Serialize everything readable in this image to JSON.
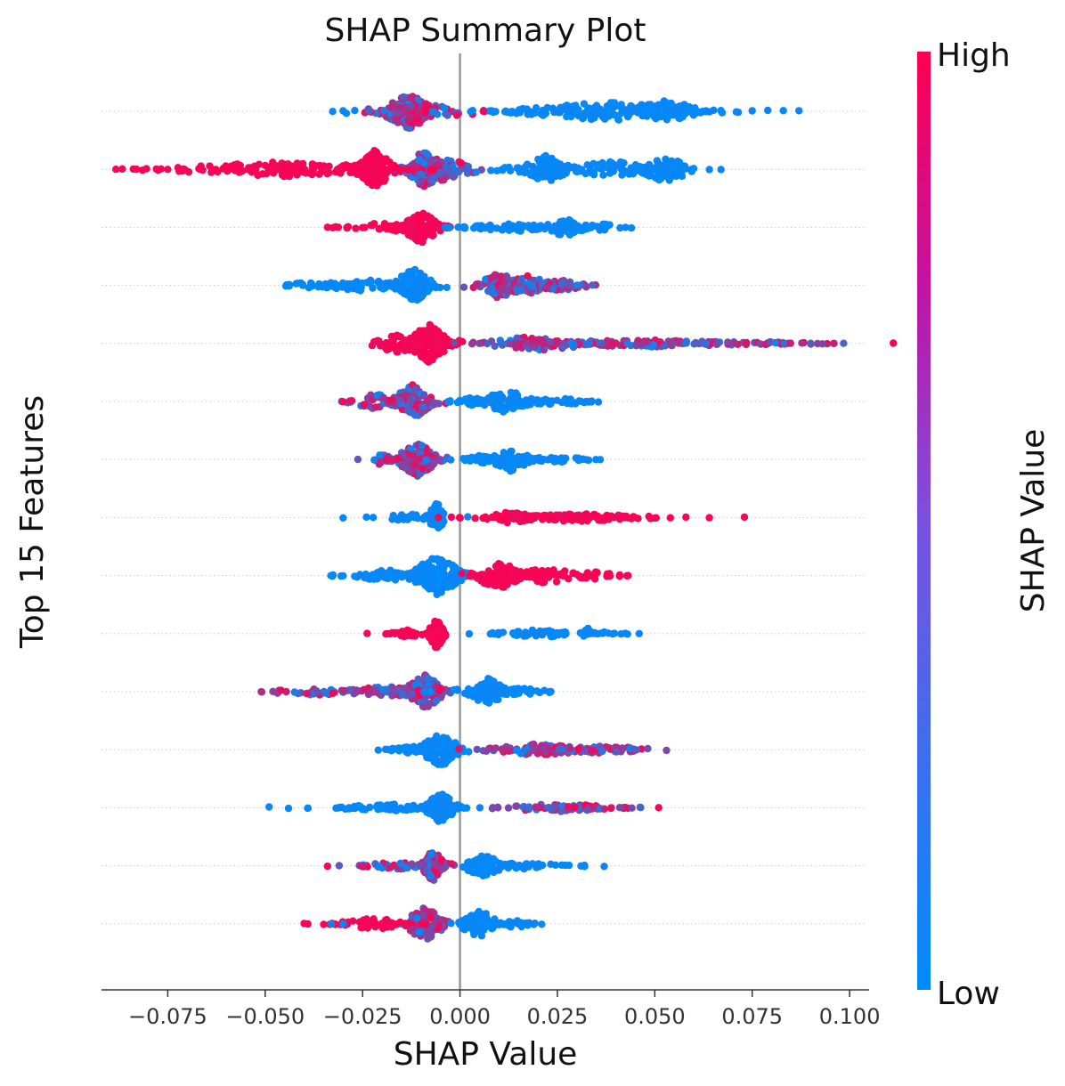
{
  "chart_data": {
    "type": "scatter",
    "subtype": "shap-beeswarm",
    "title": "SHAP Summary Plot",
    "xlabel": "SHAP Value",
    "ylabel": "Top 15 Features",
    "xlim": [
      -0.092,
      0.105
    ],
    "xticks": [
      -0.075,
      -0.05,
      -0.025,
      0.0,
      0.025,
      0.05,
      0.075,
      0.1
    ],
    "xtick_labels": [
      "−0.075",
      "−0.050",
      "−0.025",
      "0.000",
      "0.025",
      "0.050",
      "0.075",
      "0.100"
    ],
    "zero_line": 0.0,
    "colorbar": {
      "label": "SHAP Value",
      "high_label": "High",
      "low_label": "Low",
      "high_color": "#ff0051",
      "low_color": "#008bfb"
    },
    "features": [
      {
        "rank": 1,
        "clusters": [
          {
            "center": -0.013,
            "spread": 0.004,
            "width": 0.009,
            "count": 170,
            "color": "mix"
          },
          {
            "center": -0.008,
            "spread": 0.01,
            "width": 0.004,
            "count": 40,
            "color": "mix"
          },
          {
            "center": 0.038,
            "spread": 0.014,
            "width": 0.005,
            "count": 170,
            "color": "low"
          },
          {
            "center": 0.053,
            "spread": 0.005,
            "width": 0.006,
            "count": 60,
            "color": "low"
          }
        ],
        "outliers": [
          {
            "x": -0.03,
            "color": "low"
          },
          {
            "x": 0.006,
            "color": "high"
          },
          {
            "x": 0.018,
            "color": "low"
          },
          {
            "x": 0.075,
            "color": "low"
          },
          {
            "x": 0.079,
            "color": "low"
          },
          {
            "x": 0.083,
            "color": "low"
          },
          {
            "x": 0.087,
            "color": "low"
          },
          {
            "x": -0.027,
            "color": "low"
          }
        ]
      },
      {
        "rank": 2,
        "clusters": [
          {
            "center": -0.022,
            "spread": 0.003,
            "width": 0.01,
            "count": 140,
            "color": "high"
          },
          {
            "center": -0.009,
            "spread": 0.003,
            "width": 0.01,
            "count": 140,
            "color": "mix"
          },
          {
            "center": -0.004,
            "spread": 0.005,
            "width": 0.006,
            "count": 60,
            "color": "mix"
          },
          {
            "center": -0.045,
            "spread": 0.017,
            "width": 0.004,
            "count": 140,
            "color": "high"
          },
          {
            "center": 0.022,
            "spread": 0.004,
            "width": 0.007,
            "count": 90,
            "color": "low"
          },
          {
            "center": 0.04,
            "spread": 0.012,
            "width": 0.004,
            "count": 90,
            "color": "low"
          },
          {
            "center": 0.053,
            "spread": 0.004,
            "width": 0.007,
            "count": 70,
            "color": "low"
          }
        ],
        "outliers": [
          {
            "x": -0.083,
            "color": "high"
          },
          {
            "x": -0.075,
            "color": "high"
          },
          {
            "x": -0.071,
            "color": "high"
          },
          {
            "x": -0.067,
            "color": "high"
          },
          {
            "x": 0.06,
            "color": "low"
          },
          {
            "x": 0.064,
            "color": "low"
          },
          {
            "x": 0.067,
            "color": "low"
          }
        ]
      },
      {
        "rank": 3,
        "clusters": [
          {
            "center": -0.01,
            "spread": 0.003,
            "width": 0.008,
            "count": 110,
            "color": "high"
          },
          {
            "center": -0.018,
            "spread": 0.006,
            "width": 0.003,
            "count": 45,
            "color": "high"
          },
          {
            "center": 0.015,
            "spread": 0.009,
            "width": 0.002,
            "count": 70,
            "color": "low"
          },
          {
            "center": 0.027,
            "spread": 0.003,
            "width": 0.005,
            "count": 50,
            "color": "low"
          },
          {
            "center": 0.036,
            "spread": 0.004,
            "width": 0.002,
            "count": 20,
            "color": "low"
          }
        ],
        "outliers": [
          {
            "x": -0.029,
            "color": "high"
          },
          {
            "x": -0.025,
            "color": "high"
          },
          {
            "x": 0.044,
            "color": "low"
          }
        ]
      },
      {
        "rank": 4,
        "clusters": [
          {
            "center": -0.012,
            "spread": 0.003,
            "width": 0.009,
            "count": 110,
            "color": "low"
          },
          {
            "center": -0.025,
            "spread": 0.007,
            "width": 0.003,
            "count": 60,
            "color": "low"
          },
          {
            "center": -0.038,
            "spread": 0.004,
            "width": 0.002,
            "count": 20,
            "color": "low"
          },
          {
            "center": 0.01,
            "spread": 0.003,
            "width": 0.007,
            "count": 70,
            "color": "mix"
          },
          {
            "center": 0.017,
            "spread": 0.004,
            "width": 0.005,
            "count": 70,
            "color": "mix"
          },
          {
            "center": 0.026,
            "spread": 0.004,
            "width": 0.003,
            "count": 50,
            "color": "mix"
          }
        ],
        "outliers": [
          {
            "x": -0.044,
            "color": "low"
          },
          {
            "x": 0.034,
            "color": "mix"
          }
        ]
      },
      {
        "rank": 5,
        "clusters": [
          {
            "center": -0.008,
            "spread": 0.003,
            "width": 0.01,
            "count": 170,
            "color": "high"
          },
          {
            "center": -0.016,
            "spread": 0.004,
            "width": 0.005,
            "count": 50,
            "color": "high"
          },
          {
            "center": 0.02,
            "spread": 0.008,
            "width": 0.004,
            "count": 70,
            "color": "mix"
          },
          {
            "center": 0.045,
            "spread": 0.018,
            "width": 0.002,
            "count": 130,
            "color": "mix"
          },
          {
            "center": 0.075,
            "spread": 0.01,
            "width": 0.001,
            "count": 45,
            "color": "mix"
          }
        ],
        "outliers": [
          {
            "x": 0.005,
            "color": "mix"
          },
          {
            "x": 0.007,
            "color": "mix"
          },
          {
            "x": 0.09,
            "color": "mix"
          },
          {
            "x": 0.093,
            "color": "mix"
          },
          {
            "x": 0.096,
            "color": "mix"
          }
        ]
      },
      {
        "rank": 6,
        "clusters": [
          {
            "center": -0.012,
            "spread": 0.003,
            "width": 0.009,
            "count": 130,
            "color": "mix"
          },
          {
            "center": -0.022,
            "spread": 0.004,
            "width": 0.004,
            "count": 40,
            "color": "mix"
          },
          {
            "center": 0.012,
            "spread": 0.004,
            "width": 0.006,
            "count": 90,
            "color": "low"
          },
          {
            "center": 0.025,
            "spread": 0.005,
            "width": 0.002,
            "count": 40,
            "color": "low"
          },
          {
            "center": 0.003,
            "spread": 0.003,
            "width": 0.002,
            "count": 30,
            "color": "low"
          }
        ],
        "outliers": [
          {
            "x": -0.03,
            "color": "high"
          },
          {
            "x": 0.033,
            "color": "low"
          }
        ]
      },
      {
        "rank": 7,
        "clusters": [
          {
            "center": -0.011,
            "spread": 0.003,
            "width": 0.009,
            "count": 120,
            "color": "mix"
          },
          {
            "center": -0.02,
            "spread": 0.002,
            "width": 0.003,
            "count": 25,
            "color": "mix"
          },
          {
            "center": 0.013,
            "spread": 0.003,
            "width": 0.006,
            "count": 80,
            "color": "low"
          },
          {
            "center": 0.005,
            "spread": 0.004,
            "width": 0.002,
            "count": 30,
            "color": "low"
          },
          {
            "center": 0.025,
            "spread": 0.004,
            "width": 0.002,
            "count": 30,
            "color": "low"
          }
        ],
        "outliers": [
          {
            "x": -0.022,
            "color": "mix"
          },
          {
            "x": 0.033,
            "color": "low"
          },
          {
            "x": 0.036,
            "color": "low"
          }
        ]
      },
      {
        "rank": 8,
        "clusters": [
          {
            "center": -0.006,
            "spread": 0.0012,
            "width": 0.008,
            "count": 70,
            "color": "low"
          },
          {
            "center": -0.013,
            "spread": 0.004,
            "width": 0.002,
            "count": 30,
            "color": "low"
          },
          {
            "center": 0.03,
            "spread": 0.012,
            "width": 0.002,
            "count": 110,
            "color": "high"
          },
          {
            "center": 0.013,
            "spread": 0.004,
            "width": 0.003,
            "count": 40,
            "color": "high"
          }
        ],
        "outliers": [
          {
            "x": -0.03,
            "color": "low"
          },
          {
            "x": -0.024,
            "color": "low"
          },
          {
            "x": 0.002,
            "color": "low"
          },
          {
            "x": 0.05,
            "color": "high"
          },
          {
            "x": 0.054,
            "color": "high"
          },
          {
            "x": 0.058,
            "color": "high"
          },
          {
            "x": 0.064,
            "color": "high"
          },
          {
            "x": 0.073,
            "color": "high"
          }
        ]
      },
      {
        "rank": 9,
        "clusters": [
          {
            "center": -0.006,
            "spread": 0.004,
            "width": 0.01,
            "count": 150,
            "color": "low"
          },
          {
            "center": -0.018,
            "spread": 0.006,
            "width": 0.003,
            "count": 50,
            "color": "low"
          },
          {
            "center": 0.01,
            "spread": 0.004,
            "width": 0.007,
            "count": 100,
            "color": "high"
          },
          {
            "center": 0.022,
            "spread": 0.006,
            "width": 0.004,
            "count": 60,
            "color": "high"
          },
          {
            "center": 0.035,
            "spread": 0.004,
            "width": 0.002,
            "count": 20,
            "color": "high"
          }
        ],
        "outliers": [
          {
            "x": -0.03,
            "color": "low"
          },
          {
            "x": 0.041,
            "color": "high"
          }
        ]
      },
      {
        "rank": 10,
        "clusters": [
          {
            "center": -0.006,
            "spread": 0.0012,
            "width": 0.008,
            "count": 70,
            "color": "high"
          },
          {
            "center": -0.013,
            "spread": 0.003,
            "width": 0.002,
            "count": 30,
            "color": "high"
          },
          {
            "center": 0.02,
            "spread": 0.007,
            "width": 0.002,
            "count": 60,
            "color": "low"
          },
          {
            "center": 0.033,
            "spread": 0.001,
            "width": 0.003,
            "count": 10,
            "color": "low"
          },
          {
            "center": 0.037,
            "spread": 0.003,
            "width": 0.001,
            "count": 12,
            "color": "low"
          }
        ],
        "outliers": [
          {
            "x": -0.019,
            "color": "high"
          },
          {
            "x": 0.043,
            "color": "low"
          },
          {
            "x": 0.046,
            "color": "low"
          }
        ]
      },
      {
        "rank": 11,
        "clusters": [
          {
            "center": -0.009,
            "spread": 0.003,
            "width": 0.009,
            "count": 120,
            "color": "mix"
          },
          {
            "center": -0.02,
            "spread": 0.006,
            "width": 0.003,
            "count": 60,
            "color": "mix"
          },
          {
            "center": 0.007,
            "spread": 0.003,
            "width": 0.007,
            "count": 80,
            "color": "low"
          },
          {
            "center": 0.016,
            "spread": 0.004,
            "width": 0.002,
            "count": 30,
            "color": "low"
          },
          {
            "center": -0.038,
            "spread": 0.008,
            "width": 0.002,
            "count": 30,
            "color": "mix"
          }
        ],
        "outliers": [
          {
            "x": -0.051,
            "color": "mix"
          },
          {
            "x": -0.048,
            "color": "mix"
          },
          {
            "x": 0.023,
            "color": "low"
          }
        ]
      },
      {
        "rank": 12,
        "clusters": [
          {
            "center": -0.005,
            "spread": 0.003,
            "width": 0.009,
            "count": 120,
            "color": "low"
          },
          {
            "center": -0.013,
            "spread": 0.003,
            "width": 0.002,
            "count": 40,
            "color": "low"
          },
          {
            "center": 0.02,
            "spread": 0.008,
            "width": 0.003,
            "count": 80,
            "color": "mix"
          },
          {
            "center": 0.037,
            "spread": 0.007,
            "width": 0.002,
            "count": 60,
            "color": "mix"
          }
        ],
        "outliers": [
          {
            "x": -0.018,
            "color": "low"
          },
          {
            "x": 0.053,
            "color": "mix"
          }
        ]
      },
      {
        "rank": 13,
        "clusters": [
          {
            "center": -0.005,
            "spread": 0.0025,
            "width": 0.008,
            "count": 90,
            "color": "low"
          },
          {
            "center": -0.018,
            "spread": 0.008,
            "width": 0.002,
            "count": 60,
            "color": "low"
          },
          {
            "center": 0.025,
            "spread": 0.01,
            "width": 0.002,
            "count": 90,
            "color": "mix"
          }
        ],
        "outliers": [
          {
            "x": -0.049,
            "color": "low"
          },
          {
            "x": -0.044,
            "color": "low"
          },
          {
            "x": -0.039,
            "color": "low"
          },
          {
            "x": 0.001,
            "color": "low"
          },
          {
            "x": 0.051,
            "color": "high"
          }
        ]
      },
      {
        "rank": 14,
        "clusters": [
          {
            "center": -0.007,
            "spread": 0.002,
            "width": 0.008,
            "count": 90,
            "color": "mix"
          },
          {
            "center": -0.017,
            "spread": 0.005,
            "width": 0.002,
            "count": 40,
            "color": "mix"
          },
          {
            "center": 0.006,
            "spread": 0.003,
            "width": 0.006,
            "count": 60,
            "color": "low"
          },
          {
            "center": 0.018,
            "spread": 0.006,
            "width": 0.002,
            "count": 40,
            "color": "low"
          }
        ],
        "outliers": [
          {
            "x": -0.034,
            "color": "high"
          },
          {
            "x": -0.031,
            "color": "mix"
          },
          {
            "x": 0.028,
            "color": "low"
          },
          {
            "x": 0.032,
            "color": "low"
          },
          {
            "x": 0.037,
            "color": "low"
          }
        ]
      },
      {
        "rank": 15,
        "clusters": [
          {
            "center": -0.009,
            "spread": 0.003,
            "width": 0.009,
            "count": 110,
            "color": "mix"
          },
          {
            "center": -0.022,
            "spread": 0.006,
            "width": 0.003,
            "count": 55,
            "color": "high"
          },
          {
            "center": 0.005,
            "spread": 0.003,
            "width": 0.007,
            "count": 80,
            "color": "low"
          },
          {
            "center": 0.014,
            "spread": 0.003,
            "width": 0.002,
            "count": 25,
            "color": "low"
          }
        ],
        "outliers": [
          {
            "x": -0.04,
            "color": "high"
          },
          {
            "x": -0.033,
            "color": "mix"
          },
          {
            "x": -0.03,
            "color": "mix"
          },
          {
            "x": 0.017,
            "color": "low"
          }
        ]
      }
    ]
  }
}
